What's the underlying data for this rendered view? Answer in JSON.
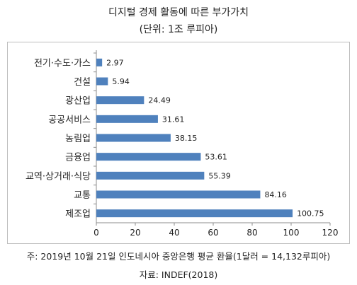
{
  "header": {
    "title": "디지털 경제 활동에 따른 부가가치",
    "subtitle": "(단위: 1조 루피아)"
  },
  "footer": {
    "note": "주: 2019년 10월 21일 인도네시아 중앙은행 평균 환율(1달러 = 14,132루피아)",
    "source": "자료: INDEF(2018)"
  },
  "chart_data": {
    "type": "bar",
    "orientation": "horizontal",
    "categories": [
      "전기·수도·가스",
      "건설",
      "광산업",
      "공공서비스",
      "농림업",
      "금융업",
      "교역·상거래·식당",
      "교통",
      "제조업"
    ],
    "values": [
      2.97,
      5.94,
      24.49,
      31.61,
      38.15,
      53.61,
      55.39,
      84.16,
      100.75
    ],
    "value_labels": [
      "2.97",
      "5.94",
      "24.49",
      "31.61",
      "38.15",
      "53.61",
      "55.39",
      "84.16",
      "100.75"
    ],
    "xlim": [
      0,
      120
    ],
    "xticks": [
      0,
      20,
      40,
      60,
      80,
      100,
      120
    ],
    "grid": false,
    "legend": "none",
    "bar_color": "#4f81bd",
    "axis_color": "#8c8c8c"
  }
}
